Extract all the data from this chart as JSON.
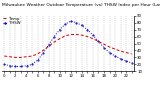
{
  "title": "Milwaukee Weather Outdoor Temperature (vs) THSW Index per Hour (Last 24 Hours)",
  "hours": [
    0,
    1,
    2,
    3,
    4,
    5,
    6,
    7,
    8,
    9,
    10,
    11,
    12,
    13,
    14,
    15,
    16,
    17,
    18,
    19,
    20,
    21,
    22,
    23
  ],
  "temp": [
    32,
    31,
    30,
    30,
    31,
    32,
    35,
    40,
    46,
    52,
    57,
    61,
    63,
    63,
    62,
    60,
    57,
    53,
    49,
    45,
    42,
    39,
    37,
    35
  ],
  "thsw": [
    20,
    18,
    17,
    17,
    18,
    20,
    26,
    36,
    48,
    60,
    70,
    78,
    82,
    80,
    76,
    70,
    62,
    53,
    44,
    37,
    32,
    28,
    25,
    22
  ],
  "temp_color": "#cc0000",
  "thsw_color": "#0000cc",
  "grid_color": "#888888",
  "bg_color": "#ffffff",
  "ylim": [
    10,
    90
  ],
  "yticks": [
    10,
    20,
    30,
    40,
    50,
    60,
    70,
    80,
    90
  ],
  "title_fontsize": 3.2,
  "tick_fontsize": 2.8,
  "legend_fontsize": 2.8,
  "legend_labels": [
    "Temp",
    "THSW"
  ]
}
